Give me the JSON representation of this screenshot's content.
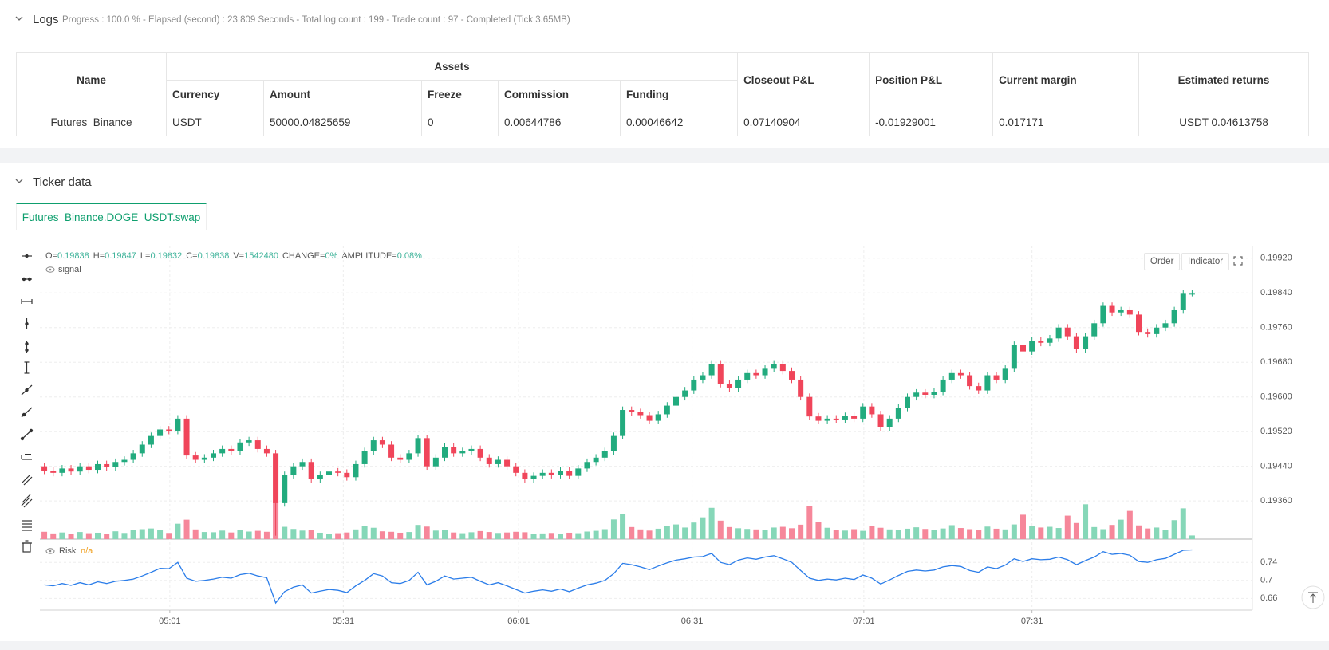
{
  "logs": {
    "title": "Logs",
    "status": "Progress : 100.0 % - Elapsed (second) : 23.809  Seconds - Total log count : 199 - Trade count : 97 - Completed (Tick 3.65MB)"
  },
  "table": {
    "headers": [
      "Name",
      "Assets",
      "Closeout P&L",
      "Position P&L",
      "Current margin",
      "Estimated returns"
    ],
    "subheaders": [
      "Currency",
      "Amount",
      "Freeze",
      "Commission",
      "Funding"
    ],
    "rows": [
      [
        "Futures_Binance",
        "USDT",
        "50000.04825659",
        "0",
        "0.00644786",
        "0.00046642",
        "0.07140904",
        "-0.01929001",
        "0.017171",
        "USDT 0.04613758"
      ]
    ]
  },
  "ticker": {
    "title": "Ticker data",
    "tab": "Futures_Binance.DOGE_USDT.swap"
  },
  "chart": {
    "type": "candlestick",
    "info": [
      {
        "label": "O=",
        "value": "0.19838"
      },
      {
        "label": "H=",
        "value": "0.19847"
      },
      {
        "label": "L=",
        "value": "0.19832"
      },
      {
        "label": "C=",
        "value": "0.19838"
      },
      {
        "label": "V=",
        "value": "1542480"
      },
      {
        "label": "CHANGE=",
        "value": "0%"
      },
      {
        "label": "AMPLITUDE=",
        "value": "0.08%"
      }
    ],
    "legend": "signal",
    "buttons": [
      "Order",
      "Indicator"
    ],
    "up_color": "#22ab7e",
    "down_color": "#f0455a",
    "volume_up_color": "#86d7b8",
    "volume_down_color": "#f6879a",
    "ylim": [
      0.19272,
      0.19949
    ],
    "yticks": [
      {
        "value": 0.1992,
        "label": "0.19920"
      },
      {
        "value": 0.1984,
        "label": "0.19840"
      },
      {
        "value": 0.1976,
        "label": "0.19760"
      },
      {
        "value": 0.1968,
        "label": "0.19680"
      },
      {
        "value": 0.196,
        "label": "0.19600"
      },
      {
        "value": 0.1952,
        "label": "0.19520"
      },
      {
        "value": 0.1944,
        "label": "0.19440"
      },
      {
        "value": 0.1936,
        "label": "0.19360"
      }
    ],
    "xticks": [
      {
        "value": 14.1,
        "label": "05:01"
      },
      {
        "value": 33.6,
        "label": "05:31"
      },
      {
        "value": 53.3,
        "label": "06:01"
      },
      {
        "value": 72.8,
        "label": "06:31"
      },
      {
        "value": 92.1,
        "label": "07:01"
      },
      {
        "value": 111.0,
        "label": "07:31"
      }
    ],
    "grid": true,
    "volume_lim": [
      0,
      17500000
    ],
    "open": [
      0.1944,
      0.1943,
      0.19425,
      0.19435,
      0.19428,
      0.1944,
      0.19432,
      0.19445,
      0.19438,
      0.1945,
      0.19455,
      0.1947,
      0.1949,
      0.1951,
      0.19525,
      0.19522,
      0.1955,
      0.19465,
      0.19455,
      0.1946,
      0.1947,
      0.1948,
      0.19475,
      0.19495,
      0.195,
      0.1948,
      0.1947,
      0.19355,
      0.1942,
      0.1944,
      0.1945,
      0.1941,
      0.1942,
      0.19428,
      0.19425,
      0.19415,
      0.19445,
      0.19475,
      0.195,
      0.1949,
      0.1946,
      0.19455,
      0.1947,
      0.19505,
      0.1944,
      0.1946,
      0.19485,
      0.1947,
      0.19475,
      0.1948,
      0.1946,
      0.19445,
      0.19455,
      0.1944,
      0.19425,
      0.1941,
      0.19418,
      0.19425,
      0.1942,
      0.1943,
      0.19418,
      0.19435,
      0.1945,
      0.1946,
      0.19475,
      0.1951,
      0.1957,
      0.19565,
      0.19558,
      0.19545,
      0.1956,
      0.1958,
      0.196,
      0.19615,
      0.1964,
      0.1965,
      0.19675,
      0.1963,
      0.1962,
      0.1964,
      0.19655,
      0.1965,
      0.19665,
      0.19675,
      0.1966,
      0.1964,
      0.196,
      0.19555,
      0.19545,
      0.1955,
      0.19548,
      0.19556,
      0.1955,
      0.19578,
      0.1956,
      0.1953,
      0.1955,
      0.19575,
      0.196,
      0.1961,
      0.19605,
      0.19612,
      0.1964,
      0.19655,
      0.1965,
      0.19625,
      0.19615,
      0.1965,
      0.1964,
      0.19665,
      0.1972,
      0.19705,
      0.1973,
      0.19725,
      0.19735,
      0.1976,
      0.1974,
      0.1971,
      0.1974,
      0.1977,
      0.1981,
      0.19795,
      0.198,
      0.1979,
      0.1975,
      0.19745,
      0.1976,
      0.1977,
      0.198,
      0.19838
    ],
    "high": [
      0.19448,
      0.19438,
      0.19443,
      0.19443,
      0.19448,
      0.19448,
      0.19453,
      0.19453,
      0.19458,
      0.19463,
      0.19478,
      0.19498,
      0.19518,
      0.19533,
      0.19533,
      0.19558,
      0.19558,
      0.19473,
      0.19468,
      0.19478,
      0.19488,
      0.19488,
      0.19503,
      0.19508,
      0.19508,
      0.19488,
      0.19478,
      0.19428,
      0.19448,
      0.19458,
      0.19458,
      0.19428,
      0.19436,
      0.19436,
      0.19433,
      0.19453,
      0.19483,
      0.19508,
      0.19508,
      0.19498,
      0.19468,
      0.19478,
      0.19513,
      0.19513,
      0.19468,
      0.19493,
      0.19493,
      0.19483,
      0.19488,
      0.19488,
      0.19468,
      0.19463,
      0.19463,
      0.19448,
      0.19433,
      0.19426,
      0.19433,
      0.19433,
      0.19438,
      0.19438,
      0.19443,
      0.19458,
      0.19468,
      0.19483,
      0.19518,
      0.19578,
      0.19578,
      0.19573,
      0.19566,
      0.19568,
      0.19588,
      0.19608,
      0.19623,
      0.19648,
      0.19658,
      0.19683,
      0.19683,
      0.19638,
      0.19648,
      0.19663,
      0.19663,
      0.19673,
      0.19683,
      0.19683,
      0.19668,
      0.19648,
      0.19608,
      0.19563,
      0.19558,
      0.19558,
      0.19564,
      0.19564,
      0.19586,
      0.19586,
      0.19568,
      0.19558,
      0.19583,
      0.19608,
      0.19618,
      0.19618,
      0.1962,
      0.19648,
      0.19663,
      0.19663,
      0.19658,
      0.19633,
      0.19658,
      0.19658,
      0.19673,
      0.19728,
      0.19728,
      0.19738,
      0.19738,
      0.19743,
      0.19768,
      0.19768,
      0.19748,
      0.19748,
      0.19778,
      0.19818,
      0.19818,
      0.19808,
      0.19808,
      0.19798,
      0.19758,
      0.19768,
      0.19778,
      0.19808,
      0.19846,
      0.19847
    ],
    "low": [
      0.19422,
      0.19417,
      0.19417,
      0.1942,
      0.1942,
      0.19424,
      0.19424,
      0.1943,
      0.1943,
      0.19442,
      0.19447,
      0.19462,
      0.19482,
      0.19502,
      0.19514,
      0.19514,
      0.19457,
      0.19447,
      0.19447,
      0.19452,
      0.19462,
      0.19467,
      0.19467,
      0.19487,
      0.19472,
      0.19462,
      0.1928,
      0.19347,
      0.19412,
      0.19432,
      0.19402,
      0.19402,
      0.19412,
      0.19417,
      0.19407,
      0.19407,
      0.19437,
      0.19467,
      0.19482,
      0.19452,
      0.19447,
      0.19447,
      0.19462,
      0.19432,
      0.19432,
      0.19452,
      0.19462,
      0.19462,
      0.19467,
      0.19452,
      0.19437,
      0.19437,
      0.19432,
      0.19417,
      0.19402,
      0.19402,
      0.1941,
      0.19412,
      0.19412,
      0.1941,
      0.1941,
      0.19427,
      0.19442,
      0.19452,
      0.19467,
      0.19502,
      0.19557,
      0.1955,
      0.19537,
      0.19537,
      0.19552,
      0.19572,
      0.19592,
      0.19607,
      0.19632,
      0.19642,
      0.19622,
      0.19612,
      0.19612,
      0.19632,
      0.19642,
      0.19642,
      0.19657,
      0.19652,
      0.19632,
      0.19592,
      0.19547,
      0.19537,
      0.19537,
      0.1954,
      0.1954,
      0.19542,
      0.19542,
      0.19552,
      0.19522,
      0.19522,
      0.19542,
      0.19567,
      0.19592,
      0.19597,
      0.19597,
      0.19604,
      0.19632,
      0.19642,
      0.19617,
      0.19607,
      0.19607,
      0.19632,
      0.19632,
      0.19657,
      0.19697,
      0.19697,
      0.19717,
      0.19717,
      0.19727,
      0.19732,
      0.19702,
      0.19702,
      0.19732,
      0.19762,
      0.19787,
      0.19787,
      0.19782,
      0.19742,
      0.19737,
      0.19737,
      0.19752,
      0.19762,
      0.19792,
      0.19832
    ],
    "close": [
      0.1943,
      0.19425,
      0.19435,
      0.19428,
      0.1944,
      0.19432,
      0.19445,
      0.19438,
      0.1945,
      0.19455,
      0.1947,
      0.1949,
      0.1951,
      0.19525,
      0.19522,
      0.1955,
      0.19465,
      0.19455,
      0.1946,
      0.1947,
      0.1948,
      0.19475,
      0.19495,
      0.195,
      0.1948,
      0.1947,
      0.19355,
      0.1942,
      0.1944,
      0.1945,
      0.1941,
      0.1942,
      0.19428,
      0.19425,
      0.19415,
      0.19445,
      0.19475,
      0.195,
      0.1949,
      0.1946,
      0.19455,
      0.1947,
      0.19505,
      0.1944,
      0.1946,
      0.19485,
      0.1947,
      0.19475,
      0.1948,
      0.1946,
      0.19445,
      0.19455,
      0.1944,
      0.19425,
      0.1941,
      0.19418,
      0.19425,
      0.1942,
      0.1943,
      0.19418,
      0.19435,
      0.1945,
      0.1946,
      0.19475,
      0.1951,
      0.1957,
      0.19565,
      0.19558,
      0.19545,
      0.1956,
      0.1958,
      0.196,
      0.19615,
      0.1964,
      0.1965,
      0.19675,
      0.1963,
      0.1962,
      0.1964,
      0.19655,
      0.1965,
      0.19665,
      0.19675,
      0.1966,
      0.1964,
      0.196,
      0.19555,
      0.19545,
      0.1955,
      0.19548,
      0.19556,
      0.1955,
      0.19578,
      0.1956,
      0.1953,
      0.1955,
      0.19575,
      0.196,
      0.1961,
      0.19605,
      0.19612,
      0.1964,
      0.19655,
      0.1965,
      0.19625,
      0.19615,
      0.1965,
      0.1964,
      0.19665,
      0.1972,
      0.19705,
      0.1973,
      0.19725,
      0.19735,
      0.1976,
      0.1974,
      0.1971,
      0.1974,
      0.1977,
      0.1981,
      0.19795,
      0.198,
      0.1979,
      0.1975,
      0.19745,
      0.1976,
      0.1977,
      0.198,
      0.19838,
      0.19838
    ],
    "volume": [
      3100000,
      2400000,
      2800000,
      2200000,
      3000000,
      2500000,
      2700000,
      2100000,
      3300000,
      2600000,
      3800000,
      4200000,
      4500000,
      3900000,
      2600000,
      6500000,
      8200000,
      4100000,
      3000000,
      2900000,
      3600000,
      2800000,
      4000000,
      3200000,
      3500000,
      3100000,
      16000000,
      5200000,
      4300000,
      3600000,
      3900000,
      2700000,
      2300000,
      2500000,
      2800000,
      4100000,
      5600000,
      4800000,
      3300000,
      3100000,
      2700000,
      3000000,
      6000000,
      5300000,
      3600000,
      3900000,
      2800000,
      2500000,
      2900000,
      3400000,
      3000000,
      2600000,
      2800000,
      3100000,
      2900000,
      2200000,
      2400000,
      2600000,
      2300000,
      2700000,
      2500000,
      3200000,
      3500000,
      4200000,
      8300000,
      10500000,
      5100000,
      4100000,
      3600000,
      4400000,
      5500000,
      6200000,
      4900000,
      7000000,
      9200000,
      13200000,
      7800000,
      5100000,
      4600000,
      4300000,
      4100000,
      3700000,
      4900000,
      5200000,
      4600000,
      6100000,
      13800000,
      7400000,
      4800000,
      3900000,
      3600000,
      4200000,
      3500000,
      5500000,
      4800000,
      4100000,
      3900000,
      4400000,
      5000000,
      4300000,
      3800000,
      4500000,
      5900000,
      4700000,
      4200000,
      3900000,
      5300000,
      4400000,
      4100000,
      6200000,
      10300000,
      5600000,
      4900000,
      5200000,
      4700000,
      9900000,
      6800000,
      14700000,
      5100000,
      4200000,
      6000000,
      8200000,
      11900000,
      5800000,
      4500000,
      4900000,
      3700000,
      8000000,
      13000000,
      1542480
    ],
    "risk": {
      "name": "Risk",
      "status": "n/a",
      "color": "#2b7de9",
      "ylim": [
        0.634,
        0.783
      ],
      "yticks": [
        0.74,
        0.7,
        0.66
      ],
      "values": [
        0.69,
        0.688,
        0.693,
        0.689,
        0.695,
        0.69,
        0.697,
        0.693,
        0.698,
        0.7,
        0.703,
        0.71,
        0.718,
        0.727,
        0.726,
        0.74,
        0.705,
        0.698,
        0.7,
        0.703,
        0.707,
        0.705,
        0.713,
        0.716,
        0.71,
        0.706,
        0.65,
        0.675,
        0.685,
        0.69,
        0.672,
        0.676,
        0.68,
        0.678,
        0.673,
        0.688,
        0.7,
        0.715,
        0.71,
        0.695,
        0.693,
        0.7,
        0.718,
        0.69,
        0.698,
        0.71,
        0.703,
        0.705,
        0.707,
        0.698,
        0.69,
        0.695,
        0.688,
        0.68,
        0.672,
        0.676,
        0.679,
        0.676,
        0.681,
        0.675,
        0.683,
        0.69,
        0.694,
        0.7,
        0.715,
        0.738,
        0.735,
        0.73,
        0.724,
        0.732,
        0.739,
        0.745,
        0.748,
        0.752,
        0.753,
        0.76,
        0.74,
        0.735,
        0.745,
        0.75,
        0.747,
        0.752,
        0.755,
        0.748,
        0.74,
        0.722,
        0.705,
        0.7,
        0.703,
        0.701,
        0.705,
        0.702,
        0.712,
        0.705,
        0.692,
        0.701,
        0.711,
        0.72,
        0.723,
        0.721,
        0.723,
        0.73,
        0.733,
        0.731,
        0.722,
        0.718,
        0.73,
        0.726,
        0.734,
        0.748,
        0.742,
        0.748,
        0.746,
        0.747,
        0.752,
        0.746,
        0.735,
        0.744,
        0.752,
        0.764,
        0.758,
        0.76,
        0.756,
        0.742,
        0.74,
        0.746,
        0.749,
        0.758,
        0.767,
        0.768
      ]
    }
  }
}
